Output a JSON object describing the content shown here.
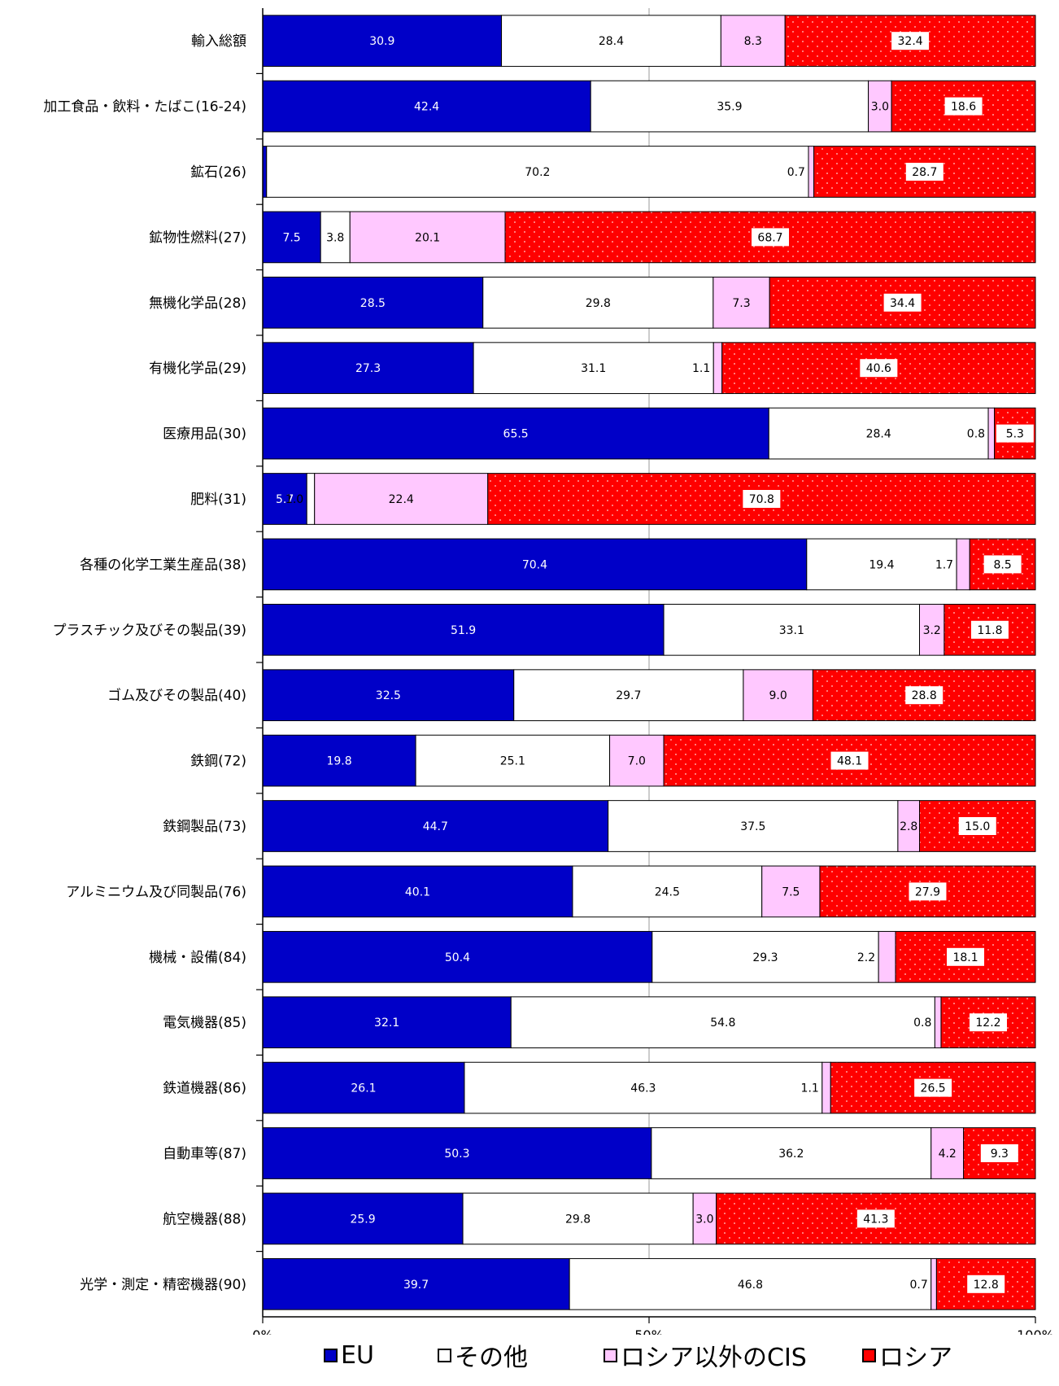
{
  "chart_data": {
    "type": "bar",
    "orientation": "horizontal",
    "stacked": "percent",
    "categories": [
      "輸入総額",
      "加工食品・飲料・たばこ(16-24)",
      "鉱石(26)",
      "鉱物性燃料(27)",
      "無機化学品(28)",
      "有機化学品(29)",
      "医療用品(30)",
      "肥料(31)",
      "各種の化学工業生産品(38)",
      "プラスチック及びその製品(39)",
      "ゴム及びその製品(40)",
      "鉄鋼(72)",
      "鉄鋼製品(73)",
      "アルミニウム及び同製品(76)",
      "機械・設備(84)",
      "電気機器(85)",
      "鉄道機器(86)",
      "自動車等(87)",
      "航空機器(88)",
      "光学・測定・精密機器(90)"
    ],
    "series": [
      {
        "name": "EU",
        "color": "#0000c8",
        "values": [
          30.9,
          42.4,
          0.5,
          7.5,
          28.5,
          27.3,
          65.5,
          5.7,
          70.4,
          51.9,
          32.5,
          19.8,
          44.7,
          40.1,
          50.4,
          32.1,
          26.1,
          50.3,
          25.9,
          39.7
        ]
      },
      {
        "name": "その他",
        "color": "#ffffff",
        "values": [
          28.4,
          35.9,
          70.2,
          3.8,
          29.8,
          31.1,
          28.4,
          1.0,
          19.4,
          33.1,
          29.7,
          25.1,
          37.5,
          24.5,
          29.3,
          54.8,
          46.3,
          36.2,
          29.8,
          46.8
        ]
      },
      {
        "name": "ロシア以外のCIS",
        "color": "#ffc8ff",
        "values": [
          8.3,
          3.0,
          0.7,
          20.1,
          7.3,
          1.1,
          0.8,
          22.4,
          1.7,
          3.2,
          9.0,
          7.0,
          2.8,
          7.5,
          2.2,
          0.8,
          1.1,
          4.2,
          3.0,
          0.7
        ]
      },
      {
        "name": "ロシア",
        "color": "#ff0000",
        "values": [
          32.4,
          18.6,
          28.7,
          68.7,
          34.4,
          40.6,
          5.3,
          70.8,
          8.5,
          11.8,
          28.8,
          48.1,
          15.0,
          27.9,
          18.1,
          12.2,
          26.5,
          9.3,
          41.3,
          12.8
        ]
      }
    ],
    "xlim": [
      0,
      100
    ],
    "x_tick_labels": [
      "0%",
      "50%",
      "100%"
    ],
    "grid": "vertical at 50%",
    "legend": "bottom"
  }
}
